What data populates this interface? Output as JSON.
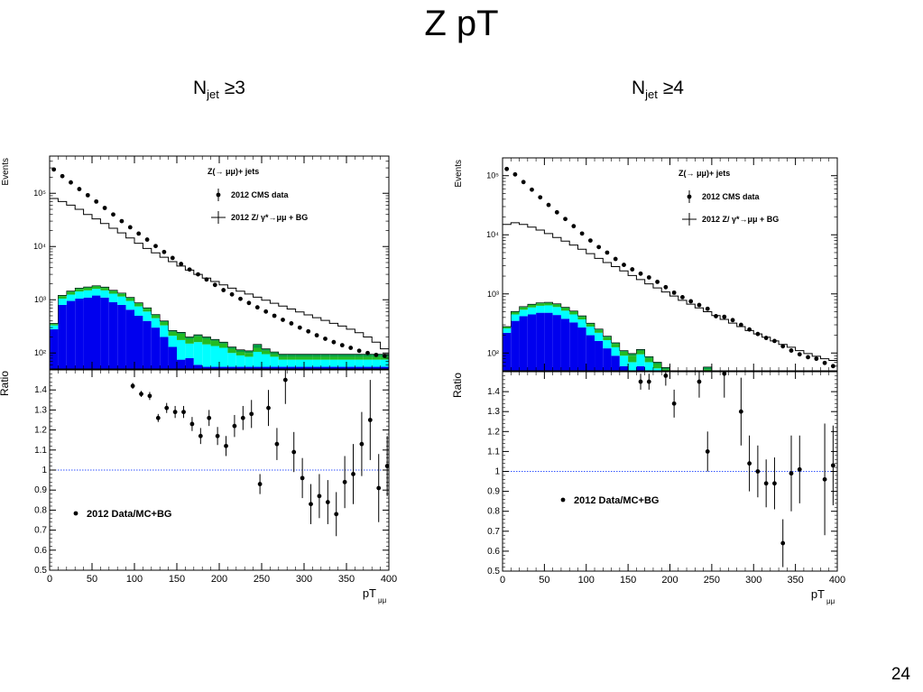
{
  "slide": {
    "title": "Z pT",
    "page_number": "24"
  },
  "colors": {
    "qcd": "#0000ee",
    "ttbar": "#00ffff",
    "ww": "#22bb22",
    "diboson": "#009944",
    "ref": "#3355ff"
  },
  "chart_data": [
    {
      "type": "bar",
      "panel_title_base": "N",
      "panel_title_sub": "jet",
      "panel_title_rel": " ≥3",
      "main": {
        "ylabel": "Events",
        "yscale": "log",
        "ylim": [
          50,
          500000
        ],
        "yticks": [
          {
            "v": 100,
            "label": "10²"
          },
          {
            "v": 1000,
            "label": "10³"
          },
          {
            "v": 10000,
            "label": "10⁴"
          },
          {
            "v": 100000,
            "label": "10⁵"
          }
        ],
        "legend": {
          "header": "Z(→ μμ)+ jets",
          "data_label": "2012 CMS data",
          "mc_label": "2012 Z/ γ*→μμ + BG"
        },
        "bin_edges": [
          0,
          10,
          20,
          30,
          40,
          50,
          60,
          70,
          80,
          90,
          100,
          110,
          120,
          130,
          140,
          150,
          160,
          170,
          180,
          190,
          200,
          210,
          220,
          230,
          240,
          250,
          260,
          270,
          280,
          290,
          300,
          310,
          320,
          330,
          340,
          350,
          360,
          370,
          380,
          390,
          400
        ],
        "mc_total": [
          80000,
          70000,
          60000,
          50000,
          40000,
          33000,
          27000,
          22000,
          18000,
          14500,
          11500,
          9200,
          7600,
          6300,
          5200,
          4300,
          3600,
          3000,
          2550,
          2200,
          1900,
          1650,
          1450,
          1280,
          1120,
          980,
          860,
          760,
          670,
          590,
          520,
          460,
          410,
          360,
          320,
          280,
          240,
          200,
          160,
          120
        ],
        "data_x": [
          5,
          15,
          25,
          35,
          45,
          55,
          65,
          75,
          85,
          95,
          105,
          115,
          125,
          135,
          145,
          155,
          165,
          175,
          185,
          195,
          205,
          215,
          225,
          235,
          245,
          255,
          265,
          275,
          285,
          295,
          305,
          315,
          325,
          335,
          345,
          355,
          365,
          375,
          385,
          395
        ],
        "data_y": [
          280000,
          210000,
          160000,
          120000,
          92000,
          70000,
          53000,
          40000,
          30000,
          23000,
          17500,
          13500,
          10200,
          7900,
          6100,
          4700,
          3700,
          3000,
          2400,
          1900,
          1520,
          1260,
          1040,
          870,
          720,
          600,
          500,
          420,
          360,
          300,
          255,
          215,
          185,
          160,
          140,
          125,
          110,
          100,
          92,
          88
        ],
        "stack": [
          {
            "name": "qcd",
            "values": [
              280,
              800,
              950,
              1050,
              1100,
              1200,
              1100,
              900,
              800,
              650,
              500,
              400,
              300,
              200,
              130,
              75,
              80,
              60,
              55,
              55,
              55,
              55,
              55,
              55,
              55,
              55,
              55,
              55,
              55,
              55,
              55,
              55,
              55,
              55,
              55,
              55,
              55,
              55,
              55,
              55
            ]
          },
          {
            "name": "ttbar",
            "values": [
              50,
              250,
              300,
              380,
              400,
              400,
              400,
              400,
              350,
              300,
              250,
              200,
              150,
              130,
              80,
              100,
              70,
              100,
              90,
              80,
              70,
              45,
              35,
              30,
              50,
              40,
              30,
              20,
              20,
              20,
              20,
              20,
              20,
              20,
              20,
              20,
              20,
              20,
              20,
              20
            ]
          },
          {
            "name": "ww",
            "values": [
              20,
              120,
              150,
              170,
              180,
              180,
              170,
              160,
              140,
              120,
              100,
              80,
              60,
              50,
              40,
              55,
              35,
              45,
              40,
              35,
              25,
              20,
              15,
              15,
              20,
              15,
              10,
              10,
              10,
              10,
              10,
              10,
              10,
              10,
              10,
              10,
              10,
              10,
              10,
              10
            ]
          },
          {
            "name": "diboson",
            "values": [
              10,
              40,
              60,
              60,
              60,
              60,
              60,
              50,
              50,
              40,
              30,
              25,
              20,
              20,
              15,
              15,
              15,
              15,
              15,
              10,
              10,
              10,
              10,
              10,
              20,
              10,
              10,
              10,
              10,
              10,
              10,
              10,
              10,
              10,
              10,
              10,
              10,
              10,
              10,
              10
            ]
          }
        ]
      },
      "ratio": {
        "ylabel": "Ratio",
        "ylim": [
          0.5,
          1.5
        ],
        "ref_line": 1,
        "yticks": [
          "0.5",
          "0.6",
          "0.7",
          "0.8",
          "0.9",
          "1",
          "1.1",
          "1.2",
          "1.3",
          "1.4"
        ],
        "xlabel": "pT",
        "xlabel_sub": "μμ",
        "xlim": [
          0,
          400
        ],
        "xticks": [
          "0",
          "50",
          "100",
          "150",
          "200",
          "250",
          "300",
          "350",
          "400"
        ],
        "legend_label": "2012 Data/MC+BG",
        "points": [
          {
            "x": 98,
            "y": 1.42,
            "e": 0.015
          },
          {
            "x": 108,
            "y": 1.38,
            "e": 0.015
          },
          {
            "x": 118,
            "y": 1.37,
            "e": 0.02
          },
          {
            "x": 128,
            "y": 1.26,
            "e": 0.02
          },
          {
            "x": 138,
            "y": 1.31,
            "e": 0.025
          },
          {
            "x": 148,
            "y": 1.29,
            "e": 0.03
          },
          {
            "x": 158,
            "y": 1.29,
            "e": 0.03
          },
          {
            "x": 168,
            "y": 1.23,
            "e": 0.035
          },
          {
            "x": 178,
            "y": 1.17,
            "e": 0.04
          },
          {
            "x": 188,
            "y": 1.26,
            "e": 0.04
          },
          {
            "x": 198,
            "y": 1.17,
            "e": 0.045
          },
          {
            "x": 208,
            "y": 1.12,
            "e": 0.05
          },
          {
            "x": 218,
            "y": 1.22,
            "e": 0.055
          },
          {
            "x": 228,
            "y": 1.26,
            "e": 0.06
          },
          {
            "x": 238,
            "y": 1.28,
            "e": 0.07
          },
          {
            "x": 248,
            "y": 0.93,
            "e": 0.05
          },
          {
            "x": 258,
            "y": 1.31,
            "e": 0.09
          },
          {
            "x": 268,
            "y": 1.13,
            "e": 0.08
          },
          {
            "x": 278,
            "y": 1.45,
            "e": 0.12
          },
          {
            "x": 288,
            "y": 1.09,
            "e": 0.1
          },
          {
            "x": 298,
            "y": 0.96,
            "e": 0.1
          },
          {
            "x": 308,
            "y": 0.83,
            "e": 0.1
          },
          {
            "x": 318,
            "y": 0.87,
            "e": 0.11
          },
          {
            "x": 328,
            "y": 0.84,
            "e": 0.11
          },
          {
            "x": 338,
            "y": 0.78,
            "e": 0.11
          },
          {
            "x": 348,
            "y": 0.94,
            "e": 0.13
          },
          {
            "x": 358,
            "y": 0.98,
            "e": 0.15
          },
          {
            "x": 368,
            "y": 1.13,
            "e": 0.16
          },
          {
            "x": 378,
            "y": 1.25,
            "e": 0.2
          },
          {
            "x": 388,
            "y": 0.91,
            "e": 0.17
          },
          {
            "x": 398,
            "y": 1.02,
            "e": 0.15
          }
        ]
      }
    },
    {
      "type": "bar",
      "panel_title_base": "N",
      "panel_title_sub": "jet",
      "panel_title_rel": " ≥4",
      "main": {
        "ylabel": "Events",
        "yscale": "log",
        "ylim": [
          50,
          200000
        ],
        "yticks": [
          {
            "v": 100,
            "label": "10²"
          },
          {
            "v": 1000,
            "label": "10³"
          },
          {
            "v": 10000,
            "label": "10⁴"
          },
          {
            "v": 100000,
            "label": "10⁵"
          }
        ],
        "legend": {
          "header": "Z(→ μμ)+ jets",
          "data_label": "2012 CMS data",
          "mc_label": "2012 Z/ γ*→μμ + BG"
        },
        "bin_edges": [
          0,
          10,
          20,
          30,
          40,
          50,
          60,
          70,
          80,
          90,
          100,
          110,
          120,
          130,
          140,
          150,
          160,
          170,
          180,
          190,
          200,
          210,
          220,
          230,
          240,
          250,
          260,
          270,
          280,
          290,
          300,
          310,
          320,
          330,
          340,
          350,
          360,
          370,
          380,
          390,
          400
        ],
        "mc_total": [
          15000,
          16000,
          15000,
          13500,
          12000,
          10500,
          9000,
          7800,
          6700,
          5700,
          4800,
          4000,
          3400,
          2900,
          2450,
          2050,
          1750,
          1480,
          1260,
          1080,
          920,
          780,
          670,
          580,
          500,
          430,
          370,
          320,
          280,
          240,
          210,
          185,
          160,
          140,
          125,
          110,
          98,
          88,
          80,
          75
        ],
        "data_x": [
          5,
          15,
          25,
          35,
          45,
          55,
          65,
          75,
          85,
          95,
          105,
          115,
          125,
          135,
          145,
          155,
          165,
          175,
          185,
          195,
          205,
          215,
          225,
          235,
          245,
          255,
          265,
          275,
          285,
          295,
          305,
          315,
          325,
          335,
          345,
          355,
          365,
          375,
          385,
          395
        ],
        "data_y": [
          130000,
          105000,
          78000,
          58000,
          43000,
          32000,
          24000,
          18500,
          14000,
          10500,
          8000,
          6200,
          5000,
          3900,
          3100,
          2600,
          2200,
          1900,
          1600,
          1300,
          1050,
          880,
          750,
          650,
          560,
          420,
          410,
          360,
          300,
          250,
          210,
          180,
          160,
          130,
          110,
          95,
          85,
          80,
          68,
          60
        ],
        "stack": [
          {
            "name": "qcd",
            "values": [
              220,
              350,
              420,
              450,
              480,
              480,
              440,
              380,
              330,
              270,
              200,
              160,
              120,
              90,
              60,
              30,
              60,
              40,
              30,
              25,
              20,
              20,
              20,
              20,
              25,
              20,
              20,
              20,
              20,
              20,
              20,
              20,
              20,
              20,
              20,
              20,
              20,
              20,
              20,
              20
            ]
          },
          {
            "name": "ttbar",
            "values": [
              40,
              100,
              120,
              140,
              150,
              160,
              160,
              140,
              120,
              100,
              80,
              60,
              45,
              35,
              30,
              40,
              35,
              30,
              25,
              20,
              15,
              15,
              12,
              10,
              20,
              10,
              10,
              10,
              10,
              10,
              10,
              10,
              10,
              10,
              10,
              10,
              10,
              10,
              10,
              10
            ]
          },
          {
            "name": "ww",
            "values": [
              15,
              40,
              50,
              60,
              60,
              60,
              60,
              55,
              50,
              40,
              30,
              25,
              20,
              18,
              15,
              20,
              15,
              12,
              10,
              8,
              6,
              6,
              5,
              5,
              8,
              5,
              5,
              5,
              5,
              5,
              5,
              5,
              5,
              5,
              5,
              5,
              5,
              5,
              5,
              5
            ]
          },
          {
            "name": "diboson",
            "values": [
              5,
              15,
              20,
              20,
              20,
              20,
              20,
              20,
              15,
              15,
              10,
              10,
              8,
              6,
              5,
              8,
              5,
              5,
              5,
              4,
              3,
              3,
              3,
              3,
              5,
              3,
              3,
              3,
              3,
              3,
              3,
              3,
              3,
              3,
              3,
              3,
              3,
              3,
              3,
              3
            ]
          }
        ]
      },
      "ratio": {
        "ylabel": "Ratio",
        "ylim": [
          0.5,
          1.5
        ],
        "ref_line": 1,
        "yticks": [
          "0.5",
          "0.6",
          "0.7",
          "0.8",
          "0.9",
          "1",
          "1.1",
          "1.2",
          "1.3",
          "1.4"
        ],
        "xlabel": "pT",
        "xlabel_sub": "μμ",
        "xlim": [
          0,
          400
        ],
        "xticks": [
          "0",
          "50",
          "100",
          "150",
          "200",
          "250",
          "300",
          "350",
          "400"
        ],
        "legend_label": "2012 Data/MC+BG",
        "points": [
          {
            "x": 165,
            "y": 1.45,
            "e": 0.04
          },
          {
            "x": 175,
            "y": 1.45,
            "e": 0.04
          },
          {
            "x": 195,
            "y": 1.48,
            "e": 0.05
          },
          {
            "x": 205,
            "y": 1.34,
            "e": 0.07
          },
          {
            "x": 235,
            "y": 1.45,
            "e": 0.08
          },
          {
            "x": 245,
            "y": 1.1,
            "e": 0.1
          },
          {
            "x": 265,
            "y": 1.49,
            "e": 0.12
          },
          {
            "x": 285,
            "y": 1.3,
            "e": 0.17
          },
          {
            "x": 295,
            "y": 1.04,
            "e": 0.14
          },
          {
            "x": 305,
            "y": 1.0,
            "e": 0.13
          },
          {
            "x": 315,
            "y": 0.94,
            "e": 0.12
          },
          {
            "x": 325,
            "y": 0.94,
            "e": 0.13
          },
          {
            "x": 335,
            "y": 0.64,
            "e": 0.12
          },
          {
            "x": 345,
            "y": 0.99,
            "e": 0.19
          },
          {
            "x": 355,
            "y": 1.01,
            "e": 0.17
          },
          {
            "x": 385,
            "y": 0.96,
            "e": 0.28
          },
          {
            "x": 395,
            "y": 1.03,
            "e": 0.2
          }
        ]
      }
    }
  ]
}
